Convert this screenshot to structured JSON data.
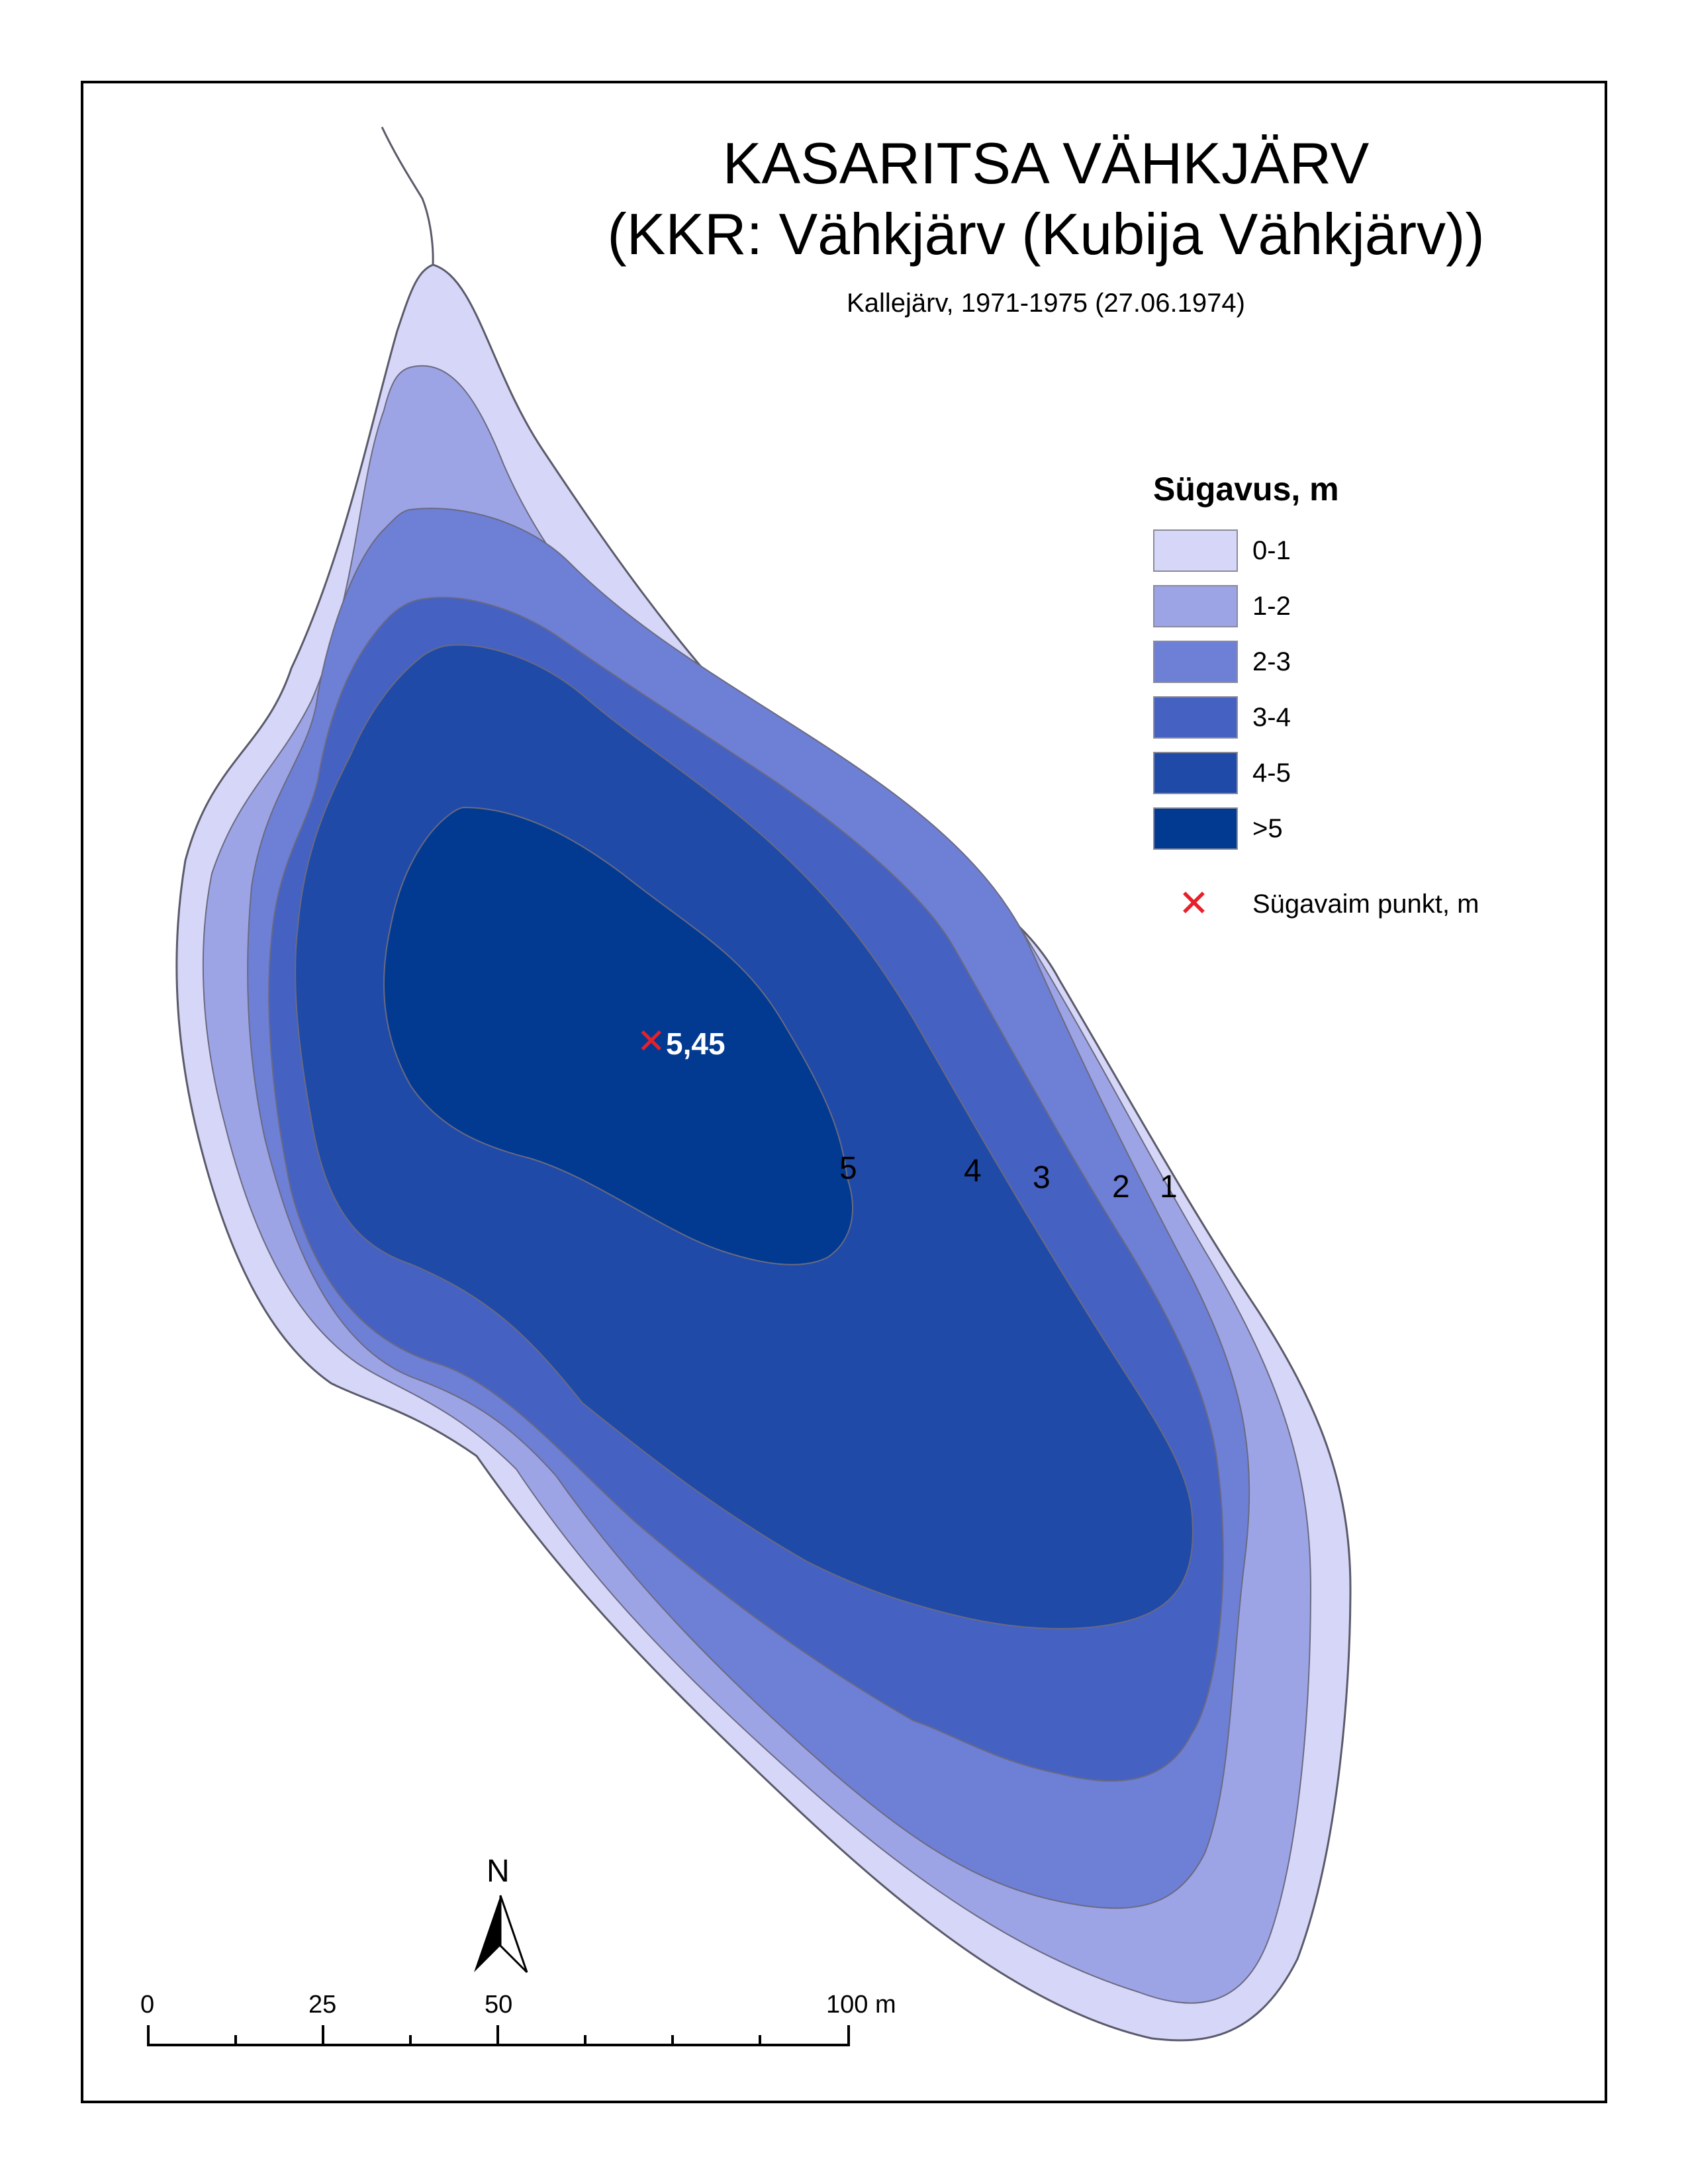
{
  "title": {
    "main": "KASARITSA VÄHKJÄRV",
    "sub": "(KKR: Vähkjärv (Kubija Vähkjärv))",
    "source": "Kallejärv, 1971-1975 (27.06.1974)"
  },
  "legend": {
    "title": "Sügavus, m",
    "classes": [
      {
        "label": "0-1",
        "color": "#d6d6f8"
      },
      {
        "label": "1-2",
        "color": "#9da4e6"
      },
      {
        "label": "2-3",
        "color": "#6e7fd6"
      },
      {
        "label": "3-4",
        "color": "#4561c2"
      },
      {
        "label": "4-5",
        "color": "#1f4aa8"
      },
      {
        "label": ">5",
        "color": "#023a92"
      }
    ],
    "deepest_point_label": "Sügavaim punkt, m",
    "deepest_point_color": "#e8202a"
  },
  "contour_labels": [
    "5",
    "4",
    "3",
    "2",
    "1"
  ],
  "deepest_point": {
    "value": "5,45"
  },
  "scale_bar": {
    "labels": [
      "0",
      "25",
      "50",
      "100 m"
    ]
  },
  "north_arrow": {
    "label": "N"
  },
  "shoreline_color": "#5a5a6a"
}
